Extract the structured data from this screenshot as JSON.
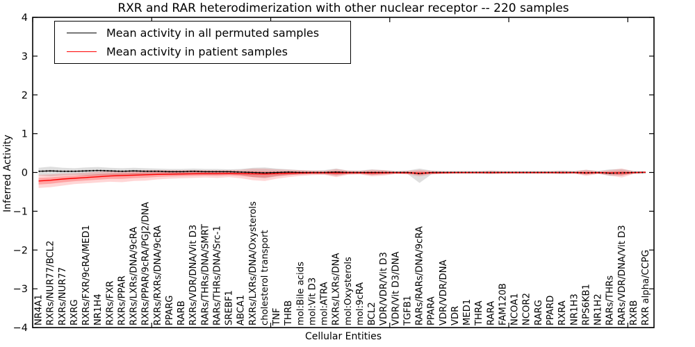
{
  "title": "RXR and RAR heterodimerization with other nuclear receptor -- 220 samples",
  "legend": {
    "entries": [
      {
        "label": "Mean activity in all permuted samples",
        "color": "#000000"
      },
      {
        "label": "Mean activity in patient samples",
        "color": "#ff0000"
      }
    ],
    "position": "upper left"
  },
  "axes": {
    "xlabel": "Cellular Entities",
    "ylabel": "Inferred Activity"
  },
  "chart_data": {
    "type": "line",
    "title": "RXR and RAR heterodimerization with other nuclear receptor -- 220 samples",
    "xlabel": "Cellular Entities",
    "ylabel": "Inferred Activity",
    "ylim": [
      -4,
      4
    ],
    "grid": false,
    "legend_position": "upper left",
    "yticks": [
      {
        "value": 4,
        "label": "4"
      },
      {
        "value": 3,
        "label": "3"
      },
      {
        "value": 2,
        "label": "2"
      },
      {
        "value": 1,
        "label": "1"
      },
      {
        "value": 0,
        "label": "0"
      },
      {
        "value": -1,
        "label": "−1"
      },
      {
        "value": -2,
        "label": "−2"
      },
      {
        "value": -3,
        "label": "−3"
      },
      {
        "value": -4,
        "label": "−4"
      }
    ],
    "xticks_major": [
      0,
      10,
      20,
      30,
      40,
      50
    ],
    "categories": [
      "NR4A1",
      "RXRs/NUR77/BCL2",
      "RXRs/NUR77",
      "RXRG",
      "RXRs/FXR/9cRA/MED1",
      "NR1H4",
      "RXRs/FXR",
      "RXRs/PPAR",
      "RXRs/LXRs/DNA/9cRA",
      "RXRs/PPAR/9cRA/PGJ2/DNA",
      "RXRs/RXRs/DNA/9cRA",
      "PPARG",
      "RARB",
      "RXRs/VDR/DNA/Vit D3",
      "RARs/THRs/DNA/SMRT",
      "RARs/THRs/DNA/Src-1",
      "SREBF1",
      "ABCA1",
      "RXRs/LXRs/DNA/Oxysterols",
      "cholesterol transport",
      "TNF",
      "THRB",
      "mol:Bile acids",
      "mol:Vit D3",
      "mol:ATRA",
      "RXRs/LXRs/DNA",
      "mol:Oxysterols",
      "mol:9cRA",
      "BCL2",
      "VDR/VDR/Vit D3",
      "VDR/Vit D3/DNA",
      "TGFB1",
      "RARs/RARs/DNA/9cRA",
      "PPARA",
      "VDR/VDR/DNA",
      "VDR",
      "MED1",
      "THRA",
      "RARA",
      "FAM120B",
      "NCOA1",
      "NCOR2",
      "RARG",
      "PPARD",
      "RXRA",
      "NR1H3",
      "RPS6KB1",
      "NR1H2",
      "RARs/THRs",
      "RARs/VDR/DNA/Vit D3",
      "RXRB",
      "RXR alpha/CCPG"
    ],
    "series": [
      {
        "name": "Mean activity in all permuted samples",
        "color": "#000000",
        "band_color": "rgba(0,0,0,0.13)",
        "values": [
          0.03,
          0.04,
          0.03,
          0.03,
          0.04,
          0.05,
          0.04,
          0.03,
          0.04,
          0.03,
          0.03,
          0.02,
          0.02,
          0.03,
          0.02,
          0.02,
          0.02,
          0.01,
          0.0,
          -0.01,
          0.0,
          0.01,
          0.0,
          0.0,
          0.0,
          0.01,
          0.0,
          0.0,
          0.0,
          0.0,
          0.0,
          0.0,
          -0.03,
          0.0,
          0.0,
          0.0,
          0.0,
          0.0,
          0.0,
          0.0,
          0.0,
          0.0,
          0.0,
          0.0,
          0.0,
          0.0,
          -0.01,
          0.0,
          -0.02,
          -0.01,
          0.0,
          0.0
        ],
        "band_high": [
          0.12,
          0.15,
          0.12,
          0.11,
          0.13,
          0.14,
          0.12,
          0.11,
          0.12,
          0.11,
          0.1,
          0.09,
          0.09,
          0.1,
          0.09,
          0.09,
          0.08,
          0.09,
          0.12,
          0.13,
          0.1,
          0.08,
          0.06,
          0.05,
          0.06,
          0.1,
          0.05,
          0.05,
          0.08,
          0.06,
          0.04,
          0.05,
          0.1,
          0.05,
          0.04,
          0.04,
          0.04,
          0.04,
          0.05,
          0.04,
          0.04,
          0.04,
          0.04,
          0.04,
          0.05,
          0.04,
          0.07,
          0.04,
          0.08,
          0.09,
          0.04,
          0.03
        ],
        "band_low": [
          -0.08,
          -0.1,
          -0.08,
          -0.07,
          -0.08,
          -0.08,
          -0.07,
          -0.08,
          -0.07,
          -0.07,
          -0.06,
          -0.06,
          -0.06,
          -0.05,
          -0.06,
          -0.06,
          -0.05,
          -0.07,
          -0.12,
          -0.15,
          -0.1,
          -0.07,
          -0.05,
          -0.04,
          -0.05,
          -0.09,
          -0.04,
          -0.04,
          -0.07,
          -0.05,
          -0.03,
          -0.04,
          -0.27,
          -0.05,
          -0.03,
          -0.03,
          -0.03,
          -0.03,
          -0.04,
          -0.03,
          -0.03,
          -0.03,
          -0.03,
          -0.03,
          -0.04,
          -0.03,
          -0.06,
          -0.03,
          -0.09,
          -0.08,
          -0.03,
          -0.02
        ]
      },
      {
        "name": "Mean activity in patient samples",
        "color": "#ff0000",
        "band_color": "rgba(255,0,0,0.16)",
        "inner_band_color": "rgba(255,0,0,0.24)",
        "values": [
          -0.22,
          -0.2,
          -0.17,
          -0.15,
          -0.13,
          -0.11,
          -0.09,
          -0.08,
          -0.07,
          -0.06,
          -0.05,
          -0.045,
          -0.04,
          -0.035,
          -0.03,
          -0.03,
          -0.025,
          -0.03,
          -0.035,
          -0.04,
          -0.03,
          -0.02,
          -0.015,
          -0.01,
          -0.01,
          -0.015,
          -0.01,
          -0.01,
          -0.015,
          -0.01,
          -0.008,
          -0.01,
          -0.02,
          -0.01,
          -0.008,
          -0.005,
          -0.005,
          -0.005,
          -0.005,
          -0.005,
          -0.005,
          -0.005,
          -0.005,
          -0.005,
          -0.005,
          -0.005,
          -0.01,
          -0.005,
          -0.01,
          -0.015,
          -0.005,
          0.005
        ],
        "band_high": [
          -0.06,
          -0.05,
          -0.03,
          -0.02,
          0.0,
          0.02,
          0.03,
          0.04,
          0.05,
          0.06,
          0.06,
          0.06,
          0.06,
          0.06,
          0.06,
          0.06,
          0.06,
          0.07,
          0.1,
          0.1,
          0.08,
          0.07,
          0.06,
          0.05,
          0.04,
          0.09,
          0.05,
          0.04,
          0.07,
          0.06,
          0.03,
          0.04,
          0.07,
          0.04,
          0.03,
          0.03,
          0.03,
          0.03,
          0.04,
          0.03,
          0.03,
          0.03,
          0.03,
          0.03,
          0.04,
          0.03,
          0.07,
          0.03,
          0.06,
          0.1,
          0.03,
          0.03
        ],
        "band_low": [
          -0.4,
          -0.38,
          -0.34,
          -0.3,
          -0.28,
          -0.26,
          -0.24,
          -0.25,
          -0.22,
          -0.21,
          -0.18,
          -0.16,
          -0.15,
          -0.14,
          -0.13,
          -0.14,
          -0.12,
          -0.15,
          -0.2,
          -0.22,
          -0.16,
          -0.12,
          -0.09,
          -0.07,
          -0.06,
          -0.12,
          -0.06,
          -0.05,
          -0.1,
          -0.08,
          -0.04,
          -0.05,
          -0.1,
          -0.05,
          -0.04,
          -0.03,
          -0.03,
          -0.03,
          -0.04,
          -0.03,
          -0.03,
          -0.03,
          -0.03,
          -0.03,
          -0.04,
          -0.03,
          -0.09,
          -0.04,
          -0.08,
          -0.13,
          -0.04,
          -0.02
        ],
        "inner_band_high": [
          -0.14,
          -0.125,
          -0.1,
          -0.085,
          -0.065,
          -0.045,
          -0.03,
          -0.02,
          -0.01,
          0.0,
          0.005,
          0.008,
          0.01,
          0.013,
          0.015,
          0.015,
          0.018,
          0.02,
          0.033,
          0.03,
          0.025,
          0.025,
          0.023,
          0.02,
          0.015,
          0.038,
          0.02,
          0.015,
          0.028,
          0.025,
          0.011,
          0.015,
          0.025,
          0.015,
          0.011,
          0.013,
          0.013,
          0.013,
          0.018,
          0.013,
          0.013,
          0.013,
          0.013,
          0.013,
          0.018,
          0.013,
          0.03,
          0.013,
          0.025,
          0.043,
          0.013,
          0.018
        ],
        "inner_band_low": [
          -0.31,
          -0.29,
          -0.255,
          -0.225,
          -0.205,
          -0.185,
          -0.165,
          -0.165,
          -0.145,
          -0.135,
          -0.115,
          -0.103,
          -0.095,
          -0.088,
          -0.08,
          -0.085,
          -0.073,
          -0.09,
          -0.118,
          -0.13,
          -0.095,
          -0.07,
          -0.053,
          -0.04,
          -0.035,
          -0.068,
          -0.035,
          -0.03,
          -0.058,
          -0.045,
          -0.024,
          -0.03,
          -0.06,
          -0.03,
          -0.024,
          -0.018,
          -0.018,
          -0.018,
          -0.023,
          -0.018,
          -0.018,
          -0.018,
          -0.018,
          -0.018,
          -0.023,
          -0.018,
          -0.05,
          -0.023,
          -0.045,
          -0.073,
          -0.023,
          -0.008
        ]
      }
    ]
  }
}
